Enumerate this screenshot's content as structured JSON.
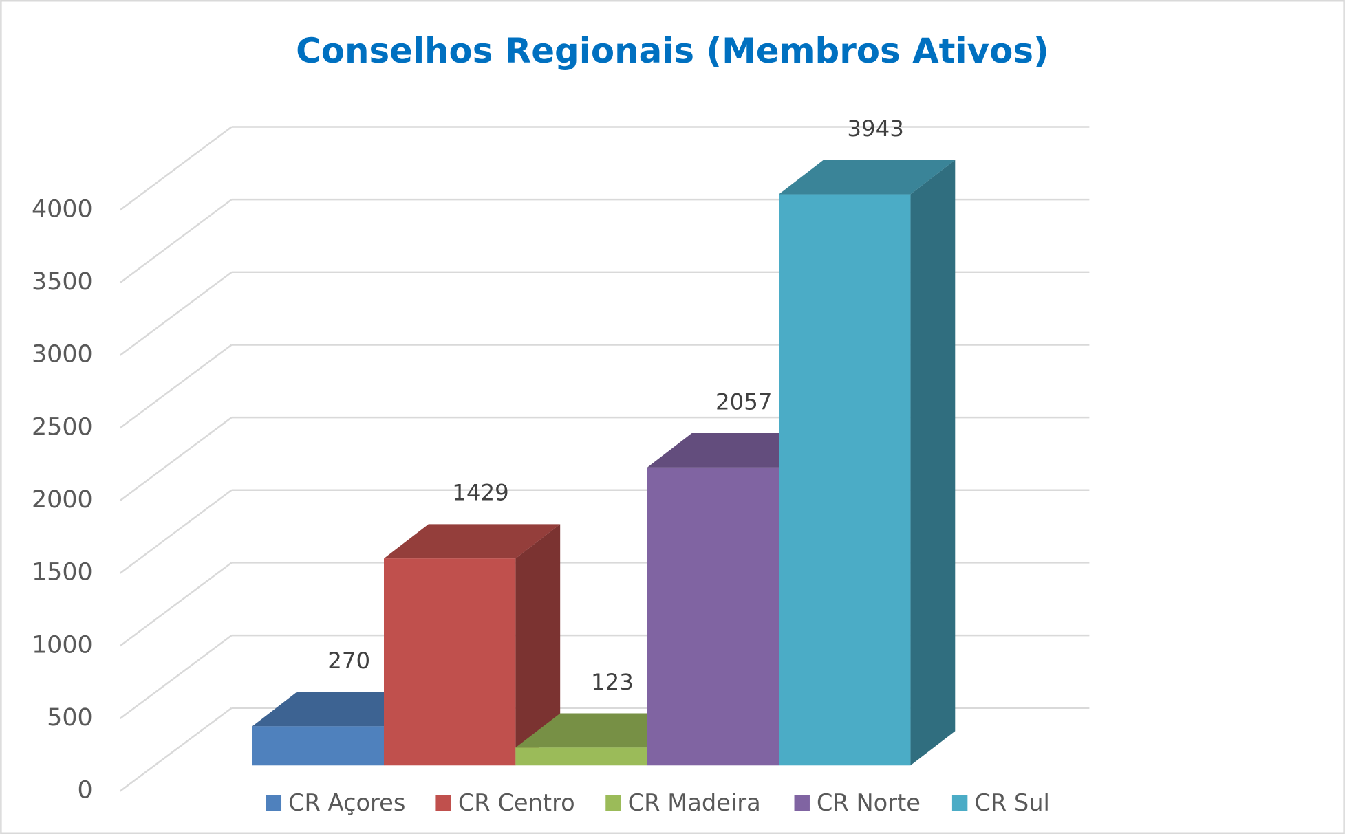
{
  "chart_data": {
    "type": "bar3d",
    "title": "Conselhos Regionais (Membros Ativos)",
    "categories": [
      "CR Açores",
      "CR Centro",
      "CR Madeira",
      "CR Norte",
      "CR Sul"
    ],
    "values": [
      270,
      1429,
      123,
      2057,
      3943
    ],
    "colors": [
      "#4f81bd",
      "#c0504d",
      "#9bbb59",
      "#8064a2",
      "#4bacc6"
    ],
    "ylim": [
      0,
      4000
    ],
    "yticks": [
      0,
      500,
      1000,
      1500,
      2000,
      2500,
      3000,
      3500,
      4000
    ],
    "grid": true,
    "legend": "bottom"
  }
}
